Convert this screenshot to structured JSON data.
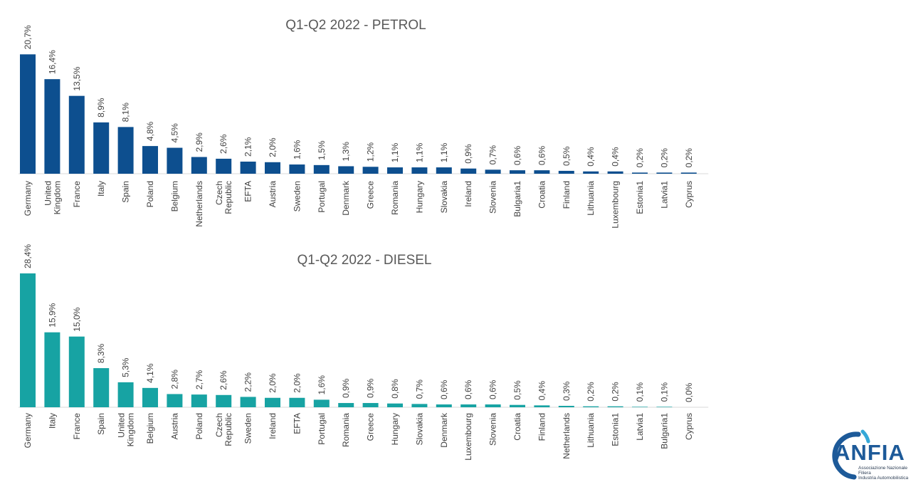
{
  "chart_data": [
    {
      "type": "bar",
      "title": "Q1-Q2 2022 - PETROL",
      "xlabel": "",
      "ylabel": "",
      "grid": false,
      "color": "#0d4f8f",
      "categories": [
        "Germany",
        "United Kingdom",
        "France",
        "Italy",
        "Spain",
        "Poland",
        "Belgium",
        "Netherlands",
        "Czech Republic",
        "EFTA",
        "Austria",
        "Sweden",
        "Portugal",
        "Denmark",
        "Greece",
        "Romania",
        "Hungary",
        "Slovakia",
        "Ireland",
        "Slovenia",
        "Bulgaria1",
        "Croatia",
        "Finland",
        "Lithuania",
        "Luxembourg",
        "Estonia1",
        "Latvia1",
        "Cyprus"
      ],
      "values": [
        20.7,
        16.4,
        13.5,
        8.9,
        8.1,
        4.8,
        4.5,
        2.9,
        2.6,
        2.1,
        2.0,
        1.6,
        1.5,
        1.3,
        1.2,
        1.1,
        1.1,
        1.1,
        0.9,
        0.7,
        0.6,
        0.6,
        0.5,
        0.4,
        0.4,
        0.2,
        0.2,
        0.2
      ],
      "value_labels": [
        "20,7%",
        "16,4%",
        "13,5%",
        "8,9%",
        "8,1%",
        "4,8%",
        "4,5%",
        "2,9%",
        "2,6%",
        "2,1%",
        "2,0%",
        "1,6%",
        "1,5%",
        "1,3%",
        "1,2%",
        "1,1%",
        "1,1%",
        "1,1%",
        "0,9%",
        "0,7%",
        "0,6%",
        "0,6%",
        "0,5%",
        "0,4%",
        "0,4%",
        "0,2%",
        "0,2%",
        "0,2%"
      ]
    },
    {
      "type": "bar",
      "title": "Q1-Q2 2022 - DIESEL",
      "xlabel": "",
      "ylabel": "",
      "grid": false,
      "color": "#17a3a3",
      "categories": [
        "Germany",
        "Italy",
        "France",
        "Spain",
        "United Kingdom",
        "Belgium",
        "Austria",
        "Poland",
        "Czech Republic",
        "Sweden",
        "Ireland",
        "EFTA",
        "Portugal",
        "Romania",
        "Greece",
        "Hungary",
        "Slovakia",
        "Denmark",
        "Luxembourg",
        "Slovenia",
        "Croatia",
        "Finland",
        "Netherlands",
        "Lithuania",
        "Estonia1",
        "Latvia1",
        "Bulgaria1",
        "Cyprus"
      ],
      "values": [
        28.4,
        15.9,
        15.0,
        8.3,
        5.3,
        4.1,
        2.8,
        2.7,
        2.6,
        2.2,
        2.0,
        2.0,
        1.6,
        0.9,
        0.9,
        0.8,
        0.7,
        0.6,
        0.6,
        0.6,
        0.5,
        0.4,
        0.3,
        0.2,
        0.2,
        0.1,
        0.1,
        0.0
      ],
      "value_labels": [
        "28,4%",
        "15,9%",
        "15,0%",
        "8,3%",
        "5,3%",
        "4,1%",
        "2,8%",
        "2,7%",
        "2,6%",
        "2,2%",
        "2,0%",
        "2,0%",
        "1,6%",
        "0,9%",
        "0,9%",
        "0,8%",
        "0,7%",
        "0,6%",
        "0,6%",
        "0,6%",
        "0,5%",
        "0,4%",
        "0,3%",
        "0,2%",
        "0,2%",
        "0,1%",
        "0,1%",
        "0,0%"
      ]
    }
  ],
  "logo": {
    "name": "ANFIA",
    "line1": "Associazione Nazionale",
    "line2": "Filiera",
    "line3": "Industria Automobilistica",
    "colors": [
      "#1d5a99",
      "#35a8d8"
    ]
  }
}
